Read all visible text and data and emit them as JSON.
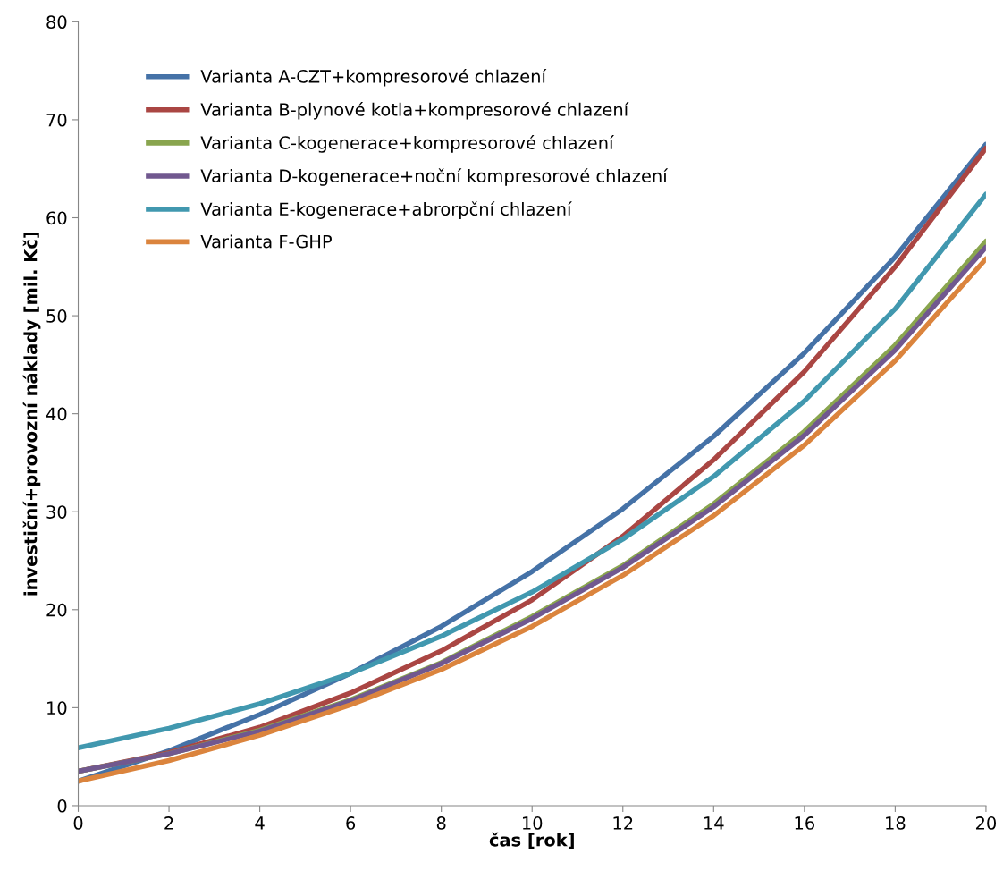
{
  "chart_data": {
    "type": "line",
    "xlabel": "čas [rok]",
    "ylabel": "investiční+provozní náklady [mil. Kč]",
    "x": [
      0,
      2,
      4,
      6,
      8,
      10,
      12,
      14,
      16,
      18,
      20
    ],
    "xlim": [
      0,
      20
    ],
    "xticks": [
      0,
      2,
      4,
      6,
      8,
      10,
      12,
      14,
      16,
      18,
      20
    ],
    "ylim": [
      0,
      80
    ],
    "yticks": [
      0,
      10,
      20,
      30,
      40,
      50,
      60,
      70,
      80
    ],
    "grid": false,
    "legend": "top left",
    "marker": "none",
    "line_style": "solid",
    "series": [
      {
        "name": "Varianta A-CZT+kompresorové chlazení",
        "color": "#4572a7",
        "values": [
          2.5,
          5.6,
          9.3,
          13.5,
          18.3,
          23.9,
          30.3,
          37.7,
          46.2,
          56.0,
          67.5
        ]
      },
      {
        "name": "Varianta B-plynové kotla+kompresorové chlazení",
        "color": "#aa4643",
        "values": [
          3.5,
          5.4,
          8.0,
          11.5,
          15.8,
          21.0,
          27.5,
          35.3,
          44.3,
          55.0,
          67.1
        ]
      },
      {
        "name": "Varianta C-kogenerace+kompresorové chlazení",
        "color": "#89a54e",
        "values": [
          3.5,
          5.3,
          7.7,
          10.8,
          14.6,
          19.3,
          24.5,
          30.8,
          38.2,
          47.0,
          57.6
        ]
      },
      {
        "name": "Varianta D-kogenerace+noční kompresorové chlazení",
        "color": "#71588f",
        "values": [
          3.5,
          5.3,
          7.6,
          10.7,
          14.5,
          19.1,
          24.3,
          30.5,
          37.8,
          46.5,
          57.0
        ]
      },
      {
        "name": "Varianta E-kogenerace+abrorpční chlazení",
        "color": "#4198af",
        "values": [
          5.9,
          7.9,
          10.4,
          13.5,
          17.3,
          21.8,
          27.2,
          33.6,
          41.3,
          50.7,
          62.4
        ]
      },
      {
        "name": "Varianta F-GHP",
        "color": "#db843d",
        "values": [
          2.5,
          4.6,
          7.2,
          10.3,
          13.9,
          18.3,
          23.5,
          29.6,
          36.8,
          45.4,
          55.8
        ]
      }
    ]
  }
}
